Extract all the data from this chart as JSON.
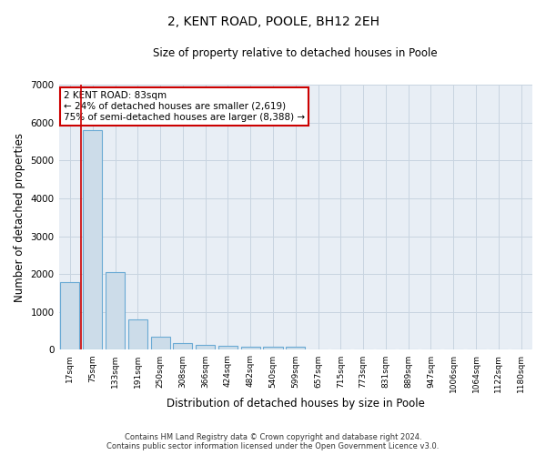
{
  "title": "2, KENT ROAD, POOLE, BH12 2EH",
  "subtitle": "Size of property relative to detached houses in Poole",
  "xlabel": "Distribution of detached houses by size in Poole",
  "ylabel": "Number of detached properties",
  "bar_color": "#ccdce9",
  "bar_edge_color": "#6aaad4",
  "grid_color": "#c8d4e0",
  "bg_color": "#e8eef5",
  "vline_color": "#cc0000",
  "annotation_line1": "2 KENT ROAD: 83sqm",
  "annotation_line2": "← 24% of detached houses are smaller (2,619)",
  "annotation_line3": "75% of semi-detached houses are larger (8,388) →",
  "annotation_box_color": "#ffffff",
  "annotation_edge_color": "#cc0000",
  "categories": [
    "17sqm",
    "75sqm",
    "133sqm",
    "191sqm",
    "250sqm",
    "308sqm",
    "366sqm",
    "424sqm",
    "482sqm",
    "540sqm",
    "599sqm",
    "657sqm",
    "715sqm",
    "773sqm",
    "831sqm",
    "889sqm",
    "947sqm",
    "1006sqm",
    "1064sqm",
    "1122sqm",
    "1180sqm"
  ],
  "values": [
    1800,
    5800,
    2060,
    810,
    340,
    185,
    120,
    110,
    90,
    80,
    75,
    0,
    0,
    0,
    0,
    0,
    0,
    0,
    0,
    0,
    0
  ],
  "vline_bar_index": 1,
  "ylim": [
    0,
    7000
  ],
  "yticks": [
    0,
    1000,
    2000,
    3000,
    4000,
    5000,
    6000,
    7000
  ],
  "footnote_line1": "Contains HM Land Registry data © Crown copyright and database right 2024.",
  "footnote_line2": "Contains public sector information licensed under the Open Government Licence v3.0.",
  "figsize": [
    6.0,
    5.0
  ],
  "dpi": 100
}
